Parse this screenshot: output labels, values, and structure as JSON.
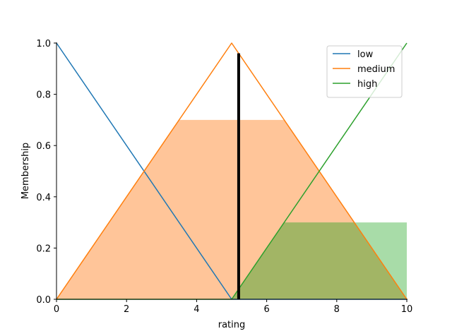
{
  "chart_data": {
    "type": "line",
    "xlabel": "rating",
    "ylabel": "Membership",
    "xlim": [
      0,
      10
    ],
    "ylim": [
      0,
      1
    ],
    "xticks": [
      0,
      2,
      4,
      6,
      8,
      10
    ],
    "xtick_labels": [
      "0",
      "2",
      "4",
      "6",
      "8",
      "10"
    ],
    "yticks": [
      0,
      0.2,
      0.4,
      0.6,
      0.8,
      1.0
    ],
    "ytick_labels": [
      "0.0",
      "0.2",
      "0.4",
      "0.6",
      "0.8",
      "1.0"
    ],
    "grid": false,
    "legend_position": "top-right",
    "series": [
      {
        "name": "low",
        "color": "#1f77b4",
        "x": [
          0,
          5,
          10
        ],
        "y": [
          1,
          0,
          0
        ]
      },
      {
        "name": "medium",
        "color": "#ff7f0e",
        "x": [
          0,
          5,
          10
        ],
        "y": [
          0,
          1,
          0
        ]
      },
      {
        "name": "high",
        "color": "#2ca02c",
        "x": [
          0,
          5,
          10
        ],
        "y": [
          0,
          0,
          1
        ]
      }
    ],
    "filled_regions": [
      {
        "series": "medium",
        "color": "#ffc599",
        "x": [
          0,
          3.5,
          6.5,
          10
        ],
        "y": [
          0,
          0.7,
          0.7,
          0
        ]
      },
      {
        "series": "high",
        "color": "#a8dca8",
        "x": [
          5,
          6.5,
          10,
          10
        ],
        "y": [
          0,
          0.3,
          0.3,
          0
        ]
      }
    ],
    "overlap_color": "#a2b565",
    "output_marker": {
      "x": 5.2,
      "y": 0.96,
      "color": "#000000"
    }
  }
}
